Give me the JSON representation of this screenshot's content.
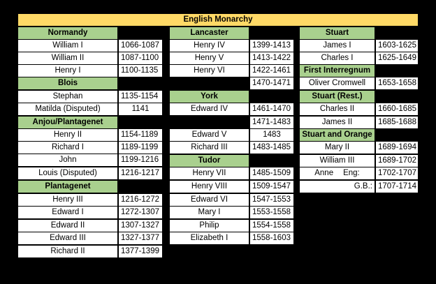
{
  "title": "English Monarchy",
  "columns": [
    {
      "blocks": [
        {
          "header": "Normandy",
          "rows": [
            [
              "William I",
              "1066-1087"
            ],
            [
              "William II",
              "1087-1100"
            ],
            [
              "Henry I",
              "1100-1135"
            ]
          ]
        },
        {
          "header": "Blois",
          "rows": [
            [
              "Stephan",
              "1135-1154"
            ],
            [
              "Matilda (Disputed)",
              "1141"
            ]
          ]
        },
        {
          "header": "Anjou/Plantagenet",
          "rows": [
            [
              "Henry II",
              "1154-1189"
            ],
            [
              "Richard I",
              "1189-1199"
            ],
            [
              "John",
              "1199-1216"
            ],
            [
              "Louis (Disputed)",
              "1216-1217"
            ]
          ]
        },
        {
          "header": "Plantagenet",
          "rows": [
            [
              "Henry III",
              "1216-1272"
            ],
            [
              "Edward I",
              "1272-1307"
            ],
            [
              "Edward II",
              "1307-1327"
            ],
            [
              "Edward III",
              "1327-1377"
            ],
            [
              "Richard II",
              "1377-1399"
            ]
          ]
        }
      ]
    },
    {
      "blocks": [
        {
          "header": "Lancaster",
          "rows": [
            [
              "Henry IV",
              "1399-1413"
            ],
            [
              "Henry V",
              "1413-1422"
            ],
            [
              "Henry VI",
              "1422-1461"
            ],
            [
              "",
              "1470-1471"
            ]
          ]
        },
        {
          "header": "York",
          "rows": [
            [
              "Edward IV",
              "1461-1470"
            ],
            [
              "",
              "1471-1483"
            ],
            [
              "Edward V",
              "1483"
            ],
            [
              "Richard III",
              "1483-1485"
            ]
          ]
        },
        {
          "header": "Tudor",
          "rows": [
            [
              "Henry VII",
              "1485-1509"
            ],
            [
              "Henry VIII",
              "1509-1547"
            ],
            [
              "Edward VI",
              "1547-1553"
            ],
            [
              "Mary I",
              "1553-1558"
            ],
            [
              "Philip",
              "1554-1558"
            ],
            [
              "Elizabeth I",
              "1558-1603"
            ]
          ]
        }
      ]
    },
    {
      "blocks": [
        {
          "header": "Stuart",
          "rows": [
            [
              "James I",
              "1603-1625"
            ],
            [
              "Charles I",
              "1625-1649"
            ]
          ]
        },
        {
          "header": "First Interregnum",
          "rows": [
            [
              "Oliver Cromwell",
              "1653-1658"
            ]
          ]
        },
        {
          "header": "Stuart (Rest.)",
          "rows": [
            [
              "Charles II",
              "1660-1685"
            ],
            [
              "James II",
              "1685-1688"
            ]
          ]
        },
        {
          "header": "Stuart and Orange",
          "rows": [
            [
              "Mary II",
              "1689-1694"
            ],
            [
              "William III",
              "1689-1702"
            ],
            [
              "Anne",
              "1702-1707"
            ]
          ]
        }
      ]
    }
  ],
  "anne_eng_label": "Eng:",
  "gb": {
    "label": "G.B.:",
    "years": "1707-1714"
  }
}
